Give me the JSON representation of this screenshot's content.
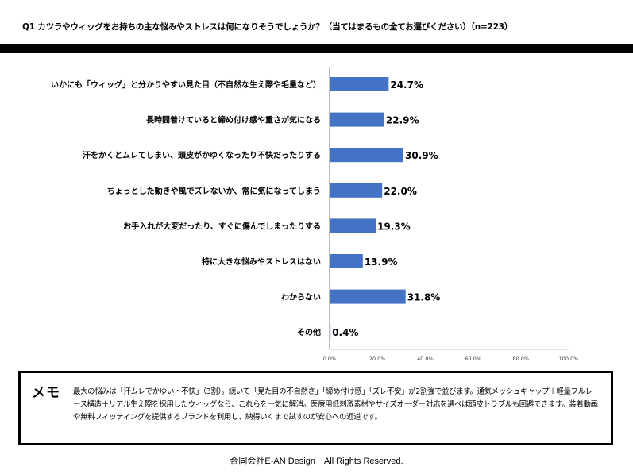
{
  "question": "Q1 カツラやウィッグをお持ちの主な悩みやストレスは何になりそうでしょうか？（当てはまるもの全てお選びください）（n=223）",
  "chart_data": {
    "type": "bar",
    "orientation": "horizontal",
    "categories": [
      "いかにも「ウィッグ」と分かりやすい見た目（不自然な生え際や毛量など）",
      "長時間着けていると締め付け感や重さが気になる",
      "汗をかくとムレてしまい、頭皮がかゆくなったり不快だったりする",
      "ちょっとした動きや風でズレないか、常に気になってしまう",
      "お手入れが大変だったり、すぐに傷んでしまったりする",
      "特に大きな悩みやストレスはない",
      "わからない",
      "その他"
    ],
    "values": [
      24.7,
      22.9,
      30.9,
      22.0,
      19.3,
      13.9,
      31.8,
      0.4
    ],
    "value_labels": [
      "24.7%",
      "22.9%",
      "30.9%",
      "22.0%",
      "19.3%",
      "13.9%",
      "31.8%",
      "0.4%"
    ],
    "xlim": [
      0,
      100
    ],
    "x_ticks": [
      "0.0%",
      "20.0%",
      "40.0%",
      "60.0%",
      "80.0%",
      "100.0%"
    ],
    "bar_color": "#4472c4",
    "grid": false,
    "legend": "none"
  },
  "memo": {
    "title": "メモ",
    "text": "最大の悩みは「汗ムレでかゆい・不快」（3割）。続いて「見た目の不自然さ」「締め付け感」「ズレ不安」が2割強で並びます。通気メッシュキャップ＋軽量フルレース構造＋リアル生え際を採用したウィッグなら、これらを一気に解消。医療用低刺激素材やサイズオーダー対応を選べば頭皮トラブルも回避できます。装着動画や無料フィッティングを提供するブランドを利用し、納得いくまで試すのが安心への近道です。"
  },
  "footer": "合同会社E-AN Design　All Rights Reserved."
}
